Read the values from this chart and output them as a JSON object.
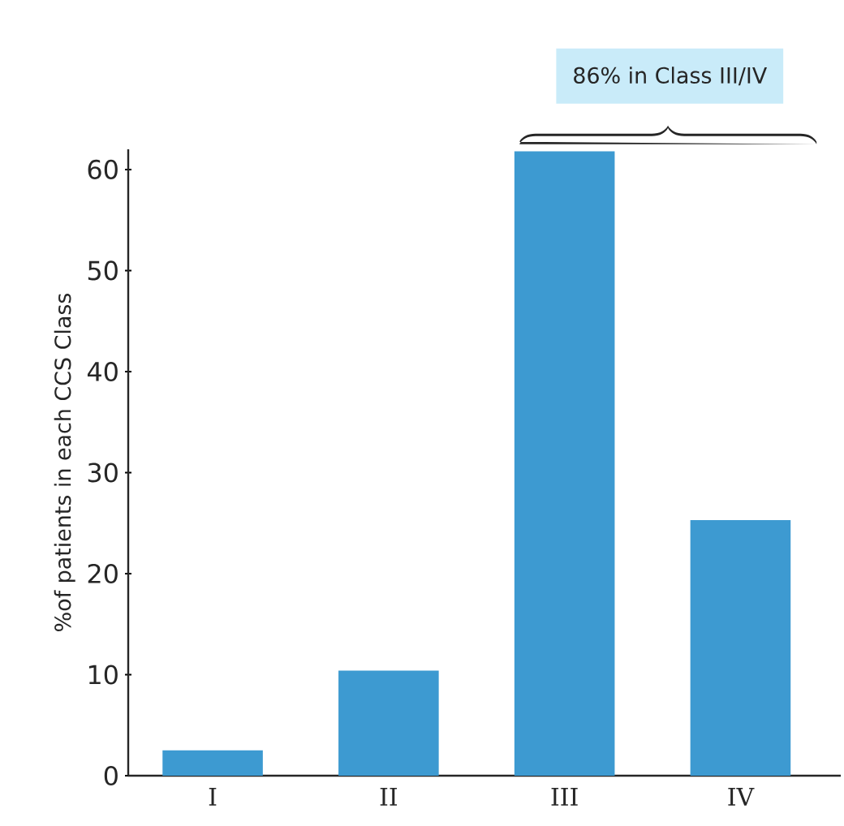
{
  "chart_data": {
    "type": "bar",
    "ylabel": "%of patients in each CCS Class",
    "categories": [
      "I",
      "II",
      "III",
      "IV"
    ],
    "values": [
      2.5,
      10.4,
      61.8,
      25.3
    ],
    "color": "#3d9ad1",
    "ylim": [
      0,
      62
    ],
    "yticks": [
      0,
      10,
      20,
      30,
      40,
      50,
      60
    ],
    "annotations": [
      "86% in Class III/IV"
    ]
  }
}
